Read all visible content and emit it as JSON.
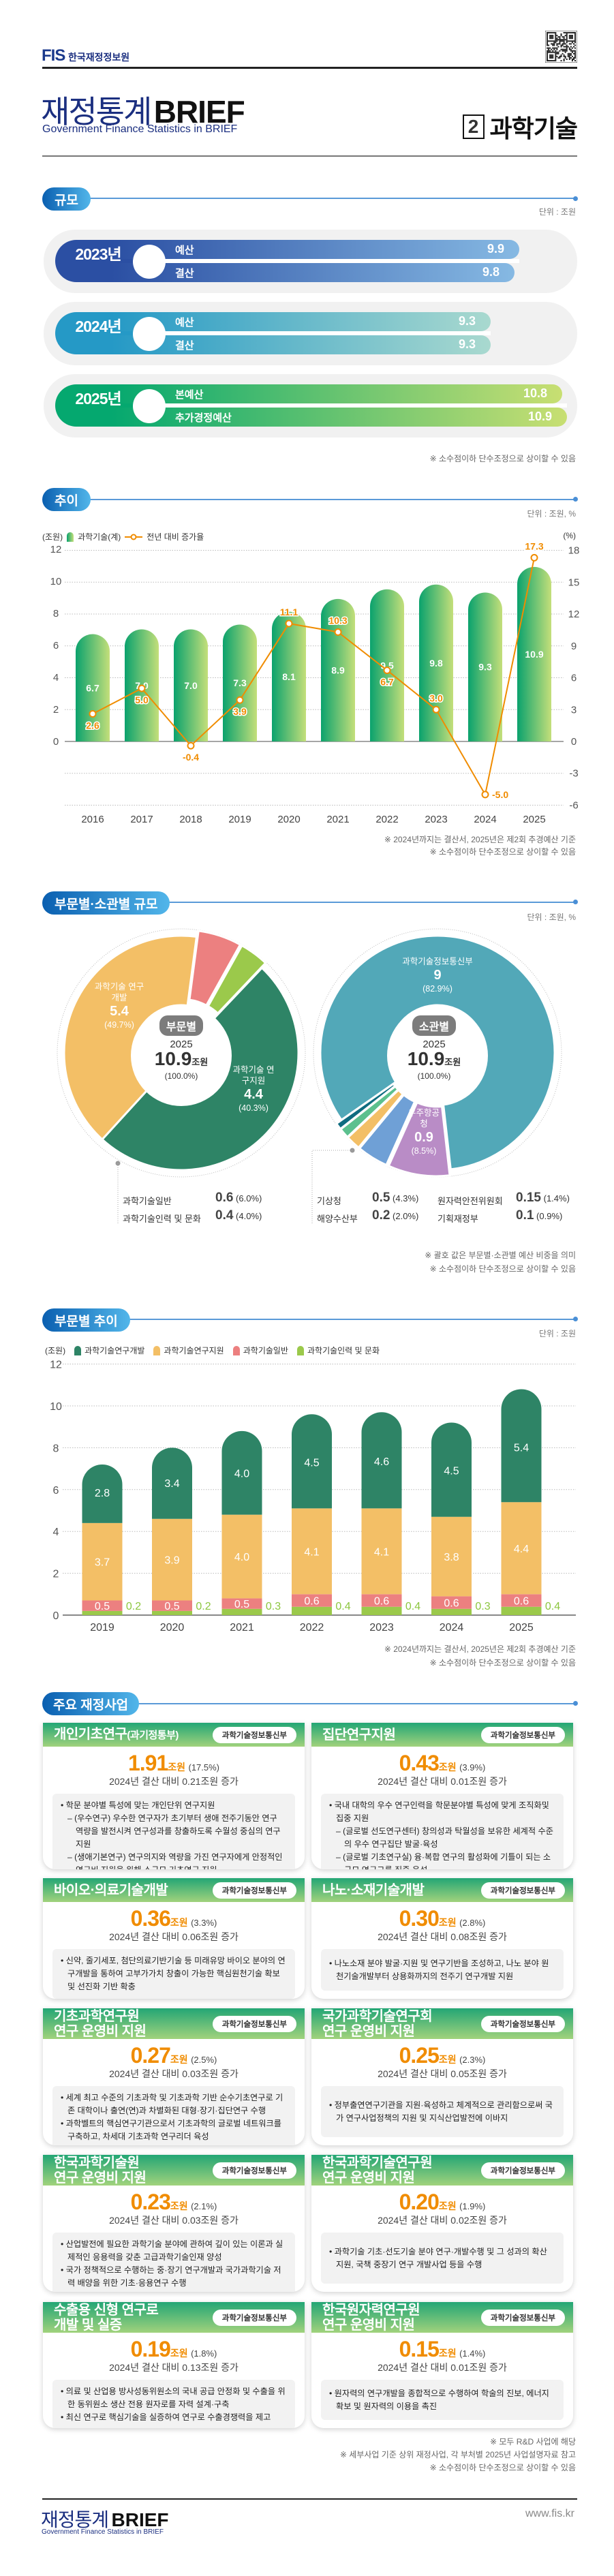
{
  "header": {
    "org_logo": "FIS",
    "org_name": "한국재정정보원",
    "title_kr": "재정통계",
    "title_en": "BRIEF",
    "subtitle": "Government Finance Statistics in BRIEF",
    "issue_no": "2",
    "topic": "과학기술"
  },
  "scale": {
    "title": "규모",
    "unit": "단위 : 조원",
    "years": [
      {
        "year": "2023년",
        "colors": [
          "#2b4fa3",
          "#86b9e3"
        ],
        "rows": [
          {
            "label": "예산",
            "value": 9.9
          },
          {
            "label": "결산",
            "value": 9.8
          }
        ]
      },
      {
        "year": "2024년",
        "colors": [
          "#2599c6",
          "#a9d9cf"
        ],
        "rows": [
          {
            "label": "예산",
            "value": 9.3
          },
          {
            "label": "결산",
            "value": 9.3
          }
        ]
      },
      {
        "year": "2025년",
        "colors": [
          "#05a86f",
          "#c8df72"
        ],
        "rows": [
          {
            "label": "본예산",
            "value": 10.8
          },
          {
            "label": "추가경정예산",
            "value": 10.9
          }
        ]
      }
    ],
    "note": "※ 소수점이하 단수조정으로 상이할 수 있음"
  },
  "trend": {
    "title": "추이",
    "unit": "단위 : 조원, %",
    "notes": [
      "※ 2024년까지는 결산서, 2025년은 제2회 추경예산 기준",
      "※ 소수점이하 단수조정으로 상이할 수 있음"
    ]
  },
  "composition": {
    "title": "부문별·소관별 규모",
    "unit": "단위 : 조원, %",
    "notes": [
      "※ 괄호 값은 부문별·소관별 예산 비중을 의미",
      "※ 소수점이하 단수조정으로 상이할 수 있음"
    ],
    "left_center": {
      "badge": "부문별",
      "year": "2025",
      "total": "10.9",
      "total_unit": "조원",
      "share": "(100.0%)"
    },
    "right_center": {
      "badge": "소관별",
      "year": "2025",
      "total": "10.9",
      "total_unit": "조원",
      "share": "(100.0%)"
    }
  },
  "sector_trend": {
    "title": "부문별 추이",
    "unit": "단위 : 조원",
    "notes": [
      "※ 2024년까지는 결산서, 2025년은 제2회 추경예산 기준",
      "※ 소수점이하 단수조정으로 상이할 수 있음"
    ]
  },
  "programs": {
    "title": "주요 재정사업",
    "cards": [
      {
        "title": "개인기초연구",
        "title_suffix": "(과기정통부)",
        "ministry": "과학기술정보통신부",
        "amount": "1.91",
        "amount_unit": "조원",
        "share": "(17.5%)",
        "change": "2024년 결산 대비 0.21조원 증가",
        "bullets": [
          {
            "type": "main",
            "text": "• 학문 분야별 특성에 맞는 개인단위 연구지원"
          },
          {
            "type": "sub",
            "text": "– (우수연구) 우수한 연구자가 초기부터 생애 전주기동안 연구 역량을 발전시켜 연구성과를 창출하도록 수월성 중심의 연구지원"
          },
          {
            "type": "sub",
            "text": "– (생애기본연구) 연구의지와 역량을 가진 연구자에게 안정적인 연구비 지원을 위해 소규모 기초연구 지원"
          }
        ]
      },
      {
        "title": "집단연구지원",
        "title_suffix": "",
        "ministry": "과학기술정보통신부",
        "amount": "0.43",
        "amount_unit": "조원",
        "share": "(3.9%)",
        "change": "2024년 결산 대비 0.01조원 증가",
        "bullets": [
          {
            "type": "main",
            "text": "• 국내 대학의 우수 연구인력을 학문분야별 특성에 맞게 조직화및 집중 지원"
          },
          {
            "type": "sub",
            "text": "– (글로벌 선도연구센터) 창의성과 탁월성을 보유한 세계적 수준의 우수 연구집단 발굴·육성"
          },
          {
            "type": "sub",
            "text": "– (글로벌 기초연구실) 융·복합 연구의 활성화에 기틀이 되는 소규모 연구그룹 집중 육성"
          }
        ]
      },
      {
        "title": "바이오·의료기술개발",
        "title_suffix": "",
        "ministry": "과학기술정보통신부",
        "amount": "0.36",
        "amount_unit": "조원",
        "share": "(3.3%)",
        "change": "2024년 결산 대비 0.06조원 증가",
        "bullets": [
          {
            "type": "main",
            "text": "• 신약, 줄기세포, 첨단의료기반기술 등 미래유망 바이오 분야의 연구개발을 통하여 고부가가치 창출이 가능한 핵심원천기술 확보 및 선진화 기반 확충"
          }
        ]
      },
      {
        "title": "나노·소재기술개발",
        "title_suffix": "",
        "ministry": "과학기술정보통신부",
        "amount": "0.30",
        "amount_unit": "조원",
        "share": "(2.8%)",
        "change": "2024년 결산 대비 0.08조원 증가",
        "bullets": [
          {
            "type": "main",
            "text": "• 나노소재 분야 발굴·지원 및 연구기반을 조성하고, 나노 분야 원천기술개발부터 상용화까지의 전주기 연구개발 지원"
          }
        ]
      },
      {
        "title": "기초과학연구원\n연구 운영비 지원",
        "title_suffix": "",
        "ministry": "과학기술정보통신부",
        "amount": "0.27",
        "amount_unit": "조원",
        "share": "(2.5%)",
        "change": "2024년 결산 대비 0.03조원 증가",
        "bullets": [
          {
            "type": "main",
            "text": "• 세계 최고 수준의 기초과학 및 기초과학 기반 순수기초연구로 기존 대학이나 출연(연)과 차별화된 대형·장기·집단연구 수행"
          },
          {
            "type": "main",
            "text": "• 과학벨트의 핵심연구기관으로서 기초과학의 글로벌 네트워크를 구축하고, 차세대 기초과학 연구리더 육성"
          }
        ]
      },
      {
        "title": "국가과학기술연구회\n연구 운영비 지원",
        "title_suffix": "",
        "ministry": "과학기술정보통신부",
        "amount": "0.25",
        "amount_unit": "조원",
        "share": "(2.3%)",
        "change": "2024년 결산 대비 0.05조원 증가",
        "bullets": [
          {
            "type": "main",
            "text": "• 정부출연연구기관을 지원·육성하고 체계적으로 관리함으로써 국가 연구사업정책의 지원 및 지식산업발전에 이바지"
          }
        ]
      },
      {
        "title": "한국과학기술원\n연구 운영비 지원",
        "title_suffix": "",
        "ministry": "과학기술정보통신부",
        "amount": "0.23",
        "amount_unit": "조원",
        "share": "(2.1%)",
        "change": "2024년 결산 대비 0.03조원 증가",
        "bullets": [
          {
            "type": "main",
            "text": "• 산업발전에 필요한 과학기술 분야에 관하여 깊이 있는 이론과 실제적인 응용력을 갖춘 고급과학기술인재 양성"
          },
          {
            "type": "main",
            "text": "• 국가 정책적으로 수행하는 중·장기 연구개발과 국가과학기술 저력 배양을 위한 기초·응용연구 수행"
          }
        ]
      },
      {
        "title": "한국과학기술연구원\n연구 운영비 지원",
        "title_suffix": "",
        "ministry": "과학기술정보통신부",
        "amount": "0.20",
        "amount_unit": "조원",
        "share": "(1.9%)",
        "change": "2024년 결산 대비 0.02조원 증가",
        "bullets": [
          {
            "type": "main",
            "text": "• 과학기술 기초·선도기술 분야 연구·개발수행 및 그 성과의 확산 지원, 국책 중장기 연구 개발사업 등을 수행"
          }
        ]
      },
      {
        "title": "수출용 신형 연구로\n개발 및 실증",
        "title_suffix": "",
        "ministry": "과학기술정보통신부",
        "amount": "0.19",
        "amount_unit": "조원",
        "share": "(1.8%)",
        "change": "2024년 결산 대비 0.13조원 증가",
        "bullets": [
          {
            "type": "main",
            "text": "• 의료 및 산업용 방사성동위원소의 국내 공급 안정화 및 수출을 위한 동위원소 생산 전용 원자로를 자력 설계·구축"
          },
          {
            "type": "main",
            "text": "• 최신 연구로 핵심기술을 실증하여 연구로 수출경쟁력을 제고"
          }
        ]
      },
      {
        "title": "한국원자력연구원\n연구 운영비 지원",
        "title_suffix": "",
        "ministry": "과학기술정보통신부",
        "amount": "0.15",
        "amount_unit": "조원",
        "share": "(1.4%)",
        "change": "2024년 결산 대비 0.01조원 증가",
        "bullets": [
          {
            "type": "main",
            "text": "• 원자력의 연구개발을 종합적으로 수행하여 학술의 진보, 에너지 확보 및 원자력의 이용을 촉진"
          }
        ]
      }
    ],
    "notes": [
      "※ 모두 R&D 사업에 해당",
      "※ 세부사업 기준 상위 재정사업, 각 부처별 2025년 사업설명자료 참고",
      "※ 소수점이하 단수조정으로 상이할 수 있음"
    ]
  },
  "footer": {
    "title_kr": "재정통계",
    "title_en": "BRIEF",
    "subtitle": "Government Finance Statistics in BRIEF",
    "url": "www.fis.kr"
  },
  "colors": {
    "navy": "#1b2f80",
    "orange": "#f08c00",
    "pill": "#0a5fb0"
  },
  "chart_data": [
    {
      "type": "bar+line",
      "categories": [
        "2016",
        "2017",
        "2018",
        "2019",
        "2020",
        "2021",
        "2022",
        "2023",
        "2024",
        "2025"
      ],
      "series": [
        {
          "name": "과학기술(계)",
          "type": "bar",
          "axis": "left",
          "values": [
            6.7,
            7.0,
            7.0,
            7.3,
            8.1,
            8.9,
            9.5,
            9.8,
            9.3,
            10.9
          ],
          "color": "#0aa26d"
        },
        {
          "name": "전년 대비 증가율",
          "type": "line",
          "axis": "right",
          "values": [
            2.6,
            5.0,
            -0.4,
            3.9,
            11.1,
            10.3,
            6.7,
            3.0,
            -5.0,
            17.3
          ],
          "color": "#f08c00"
        }
      ],
      "ylabel_left": "(조원)",
      "ylabel_right": "(%)",
      "y_left_range": [
        -4,
        12
      ],
      "y_left_ticks": [
        0,
        2,
        4,
        6,
        8,
        10,
        12
      ],
      "y_right_range": [
        -6,
        18
      ],
      "y_right_ticks": [
        -6,
        -3,
        0,
        3,
        6,
        9,
        12,
        15,
        18
      ],
      "grid": true,
      "legend": "top-left"
    },
    {
      "type": "pie",
      "variant": "donut",
      "slices": [
        {
          "label": "과학기술 연구개발",
          "value": 5.4,
          "share": "(49.7%)",
          "color": "#2e8466"
        },
        {
          "label": "과학기술 연구지원",
          "value": 4.4,
          "share": "(40.3%)",
          "color": "#f3bf66"
        },
        {
          "label": "과학기술일반",
          "value": 0.6,
          "share": "(6.0%)",
          "color": "#ec8080"
        },
        {
          "label": "과학기술인력 및 문화",
          "value": 0.4,
          "share": "(4.0%)",
          "color": "#9bc94b"
        }
      ]
    },
    {
      "type": "pie",
      "variant": "donut",
      "slices": [
        {
          "label": "과학기술정보통신부",
          "value": 9.0,
          "share": "(82.9%)",
          "color": "#52a8b8"
        },
        {
          "label": "우주항공청",
          "value": 0.9,
          "share": "(8.5%)",
          "color": "#b98cc6"
        },
        {
          "label": "기상청",
          "value": 0.5,
          "share": "(4.3%)",
          "color": "#6fa0d6"
        },
        {
          "label": "해양수산부",
          "value": 0.2,
          "share": "(2.0%)",
          "color": "#f3bf66"
        },
        {
          "label": "원자력안전위원회",
          "value": 0.15,
          "share": "(1.4%)",
          "color": "#5cc08e"
        },
        {
          "label": "기획재정부",
          "value": 0.1,
          "share": "(0.9%)",
          "color": "#0e6c80"
        }
      ]
    },
    {
      "type": "bar",
      "stacked": true,
      "categories": [
        "2019",
        "2020",
        "2021",
        "2022",
        "2023",
        "2024",
        "2025"
      ],
      "series": [
        {
          "name": "과학기술연구개발",
          "values": [
            2.8,
            3.4,
            4.0,
            4.5,
            4.6,
            4.5,
            5.4
          ],
          "color": "#2e8466"
        },
        {
          "name": "과학기술연구지원",
          "values": [
            3.7,
            3.9,
            4.0,
            4.1,
            4.1,
            3.8,
            4.4
          ],
          "color": "#f3bf66"
        },
        {
          "name": "과학기술일반",
          "values": [
            0.5,
            0.5,
            0.5,
            0.6,
            0.6,
            0.6,
            0.6
          ],
          "color": "#ec8080"
        },
        {
          "name": "과학기술인력 및 문화",
          "values": [
            0.2,
            0.2,
            0.3,
            0.4,
            0.4,
            0.3,
            0.4
          ],
          "color": "#9bc94b"
        }
      ],
      "ylabel": "(조원)",
      "ylim": [
        0,
        12
      ],
      "y_ticks": [
        0,
        2,
        4,
        6,
        8,
        10,
        12
      ],
      "grid": true,
      "legend": "top-left"
    }
  ]
}
